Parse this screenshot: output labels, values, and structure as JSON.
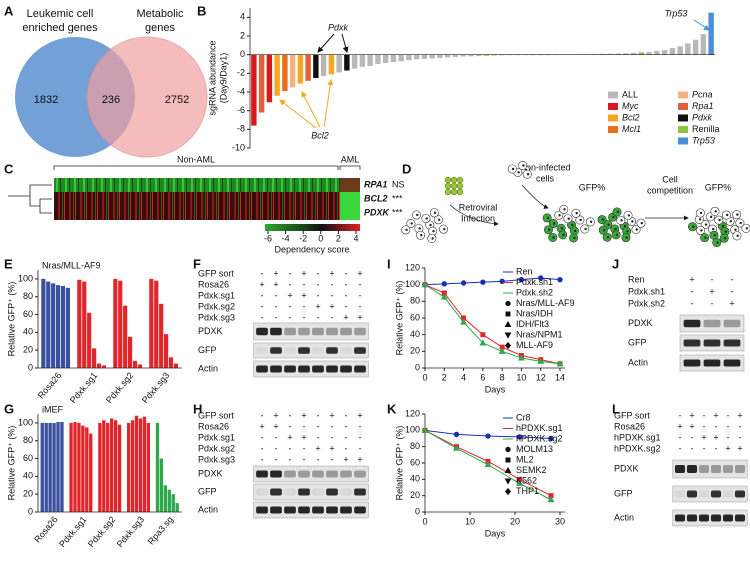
{
  "venn": {
    "label": "A",
    "left": {
      "lines": [
        "Leukemic cell",
        "enriched genes"
      ],
      "count": 1832
    },
    "overlap": 236,
    "right": {
      "lines": [
        "Metabolic",
        "genes"
      ],
      "count": 2752
    }
  },
  "heatmap": {
    "label": "C",
    "groups": [
      "Non-AML",
      "AML"
    ],
    "rows": [
      {
        "gene": "RPA1",
        "sig": "NS"
      },
      {
        "gene": "BCL2",
        "sig": "***"
      },
      {
        "gene": "PDXK",
        "sig": "***"
      }
    ],
    "colorbar_ticks": [
      -6,
      -4,
      -2,
      0,
      2,
      4
    ],
    "colorbar_label": "Dependency score"
  },
  "schematic": {
    "label": "D",
    "non_infected": [
      "Non-infected",
      "cells"
    ],
    "infection": [
      "Retroviral",
      "Infection"
    ],
    "gfp_before": "GFP%",
    "competition": [
      "Cell",
      "competition"
    ],
    "gfp_after": "GFP%"
  },
  "blots": [
    {
      "label": "F",
      "rows": [
        {
          "name": "GFP sort",
          "signs": [
            "-",
            "+",
            "-",
            "+",
            "-",
            "+",
            "-",
            "+"
          ]
        },
        {
          "name": "Rosa26",
          "signs": [
            "+",
            "+",
            "-",
            "-",
            "-",
            "-",
            "-",
            "-"
          ]
        },
        {
          "name": "Pdxk.sg1",
          "signs": [
            "-",
            "-",
            "+",
            "+",
            "-",
            "-",
            "-",
            "-"
          ]
        },
        {
          "name": "Pdxk.sg2",
          "signs": [
            "-",
            "-",
            "-",
            "-",
            "+",
            "+",
            "-",
            "-"
          ]
        },
        {
          "name": "Pdxk.sg3",
          "signs": [
            "-",
            "-",
            "-",
            "-",
            "-",
            "-",
            "+",
            "+"
          ]
        }
      ],
      "bands": [
        "PDXK",
        "GFP",
        "Actin"
      ]
    },
    {
      "label": "H",
      "rows": [
        {
          "name": "GFP sort",
          "signs": [
            "-",
            "+",
            "-",
            "+",
            "-",
            "+",
            "-",
            "+"
          ]
        },
        {
          "name": "Rosa26",
          "signs": [
            "+",
            "+",
            "-",
            "-",
            "-",
            "-",
            "-",
            "-"
          ]
        },
        {
          "name": "Pdxk.sg1",
          "signs": [
            "-",
            "-",
            "+",
            "+",
            "-",
            "-",
            "-",
            "-"
          ]
        },
        {
          "name": "Pdxk.sg2",
          "signs": [
            "-",
            "-",
            "-",
            "-",
            "+",
            "+",
            "-",
            "-"
          ]
        },
        {
          "name": "Pdxk.sg3",
          "signs": [
            "-",
            "-",
            "-",
            "-",
            "-",
            "-",
            "+",
            "+"
          ]
        }
      ],
      "bands": [
        "PDXK",
        "GFP",
        "Actin"
      ]
    },
    {
      "label": "J",
      "rows": [
        {
          "name": "Ren",
          "signs": [
            "+",
            "-",
            "-"
          ]
        },
        {
          "name": "Pdxk.sh1",
          "signs": [
            "-",
            "+",
            "-"
          ]
        },
        {
          "name": "Pdxk.sh2",
          "signs": [
            "-",
            "-",
            "+"
          ]
        }
      ],
      "bands": [
        "PDXK",
        "GFP",
        "Actin"
      ]
    },
    {
      "label": "L",
      "rows": [
        {
          "name": "GFP sort",
          "signs": [
            "-",
            "+",
            "-",
            "+",
            "-",
            "+"
          ]
        },
        {
          "name": "Rosa26",
          "signs": [
            "+",
            "+",
            "-",
            "-",
            "-",
            "-"
          ]
        },
        {
          "name": "hPDXK.sg1",
          "signs": [
            "-",
            "-",
            "+",
            "+",
            "-",
            "-"
          ]
        },
        {
          "name": "hPDXK.sg2",
          "signs": [
            "-",
            "-",
            "-",
            "-",
            "+",
            "+"
          ]
        }
      ],
      "bands": [
        "PDXK",
        "GFP",
        "Actin"
      ]
    }
  ],
  "chart_data": [
    {
      "type": "bar",
      "label": "B",
      "y_label": [
        "sgRNA abundance",
        "(Day9/Day1)"
      ],
      "ylim": [
        -10,
        5
      ],
      "yticks": [
        -10,
        -8,
        -6,
        -4,
        -2,
        0,
        2,
        4
      ],
      "values": [
        -7.6,
        -6.2,
        -5.1,
        -4.4,
        -3.9,
        -3.5,
        -3.1,
        -2.8,
        -2.5,
        -2.3,
        -2.1,
        -1.9,
        -1.7,
        -1.5,
        -1.3,
        -1.2,
        -1.0,
        -0.9,
        -0.8,
        -0.7,
        -0.6,
        -0.5,
        -0.45,
        -0.4,
        -0.35,
        -0.3,
        -0.25,
        -0.2,
        -0.18,
        -0.15,
        -0.12,
        -0.1,
        -0.08,
        -0.06,
        -0.05,
        -0.04,
        -0.03,
        -0.02,
        -0.01,
        0.01,
        0.02,
        0.03,
        0.04,
        0.05,
        0.06,
        0.08,
        0.1,
        0.12,
        0.15,
        0.2,
        0.25,
        0.3,
        0.4,
        0.5,
        0.7,
        0.9,
        1.2,
        1.6,
        2.2,
        4.5
      ],
      "groups": [
        "Myc",
        "Rpa1",
        "Myc",
        "Bcl2",
        "Mcl1",
        "Pcna",
        "Bcl2",
        "Rpa1",
        "Pdxk",
        "ALL",
        "Bcl2",
        "ALL",
        "Pdxk",
        "ALL",
        "ALL",
        "ALL",
        "ALL",
        "ALL",
        "ALL",
        "ALL",
        "ALL",
        "ALL",
        "ALL",
        "ALL",
        "ALL",
        "ALL",
        "ALL",
        "ALL",
        "ALL",
        "ALL",
        "Renilla",
        "ALL",
        "ALL",
        "ALL",
        "ALL",
        "ALL",
        "ALL",
        "ALL",
        "ALL",
        "ALL",
        "ALL",
        "ALL",
        "Renilla",
        "ALL",
        "ALL",
        "ALL",
        "ALL",
        "ALL",
        "ALL",
        "ALL",
        "Renilla",
        "ALL",
        "ALL",
        "ALL",
        "ALL",
        "ALL",
        "ALL",
        "ALL",
        "ALL",
        "Trp53"
      ],
      "legend": [
        {
          "name": "ALL",
          "color": "#b8b8b8",
          "italic": false
        },
        {
          "name": "Myc",
          "color": "#d7191c",
          "italic": true
        },
        {
          "name": "Bcl2",
          "color": "#f5a623",
          "italic": true
        },
        {
          "name": "Mcl1",
          "color": "#e8701c",
          "italic": true
        },
        {
          "name": "Pcna",
          "color": "#f4b183",
          "italic": true
        },
        {
          "name": "Rpa1",
          "color": "#e0603a",
          "italic": true
        },
        {
          "name": "Pdxk",
          "color": "#111111",
          "italic": true
        },
        {
          "name": "Renilla",
          "color": "#8cc63f",
          "italic": false
        },
        {
          "name": "Trp53",
          "color": "#4a8fd9",
          "italic": true
        }
      ],
      "annotations": [
        "Pdxk",
        "Bcl2",
        "Trp53"
      ]
    },
    {
      "type": "bar",
      "label": "E",
      "subtitle": "Nras/MLL-AF9",
      "y_label": [
        "Relative GFP⁺ (%)"
      ],
      "ylim": [
        0,
        110
      ],
      "yticks": [
        0,
        20,
        40,
        60,
        80,
        100
      ],
      "groups": [
        {
          "name": "Rosa26",
          "color": "#3a4fa0",
          "values": [
            100,
            97,
            95,
            93,
            92,
            90
          ]
        },
        {
          "name": "Pdxk.sg1",
          "color": "#e0262b",
          "values": [
            99,
            97,
            62,
            22,
            5,
            3
          ]
        },
        {
          "name": "Pdxk.sg2",
          "color": "#e0262b",
          "values": [
            100,
            98,
            70,
            35,
            8,
            4
          ]
        },
        {
          "name": "Pdxk.sg3",
          "color": "#e0262b",
          "values": [
            100,
            98,
            72,
            38,
            12,
            5
          ]
        }
      ]
    },
    {
      "type": "bar",
      "label": "G",
      "subtitle": "iMEF",
      "y_label": [
        "Relative GFP⁺ (%)"
      ],
      "ylim": [
        0,
        110
      ],
      "yticks": [
        0,
        20,
        40,
        60,
        80,
        100
      ],
      "groups": [
        {
          "name": "Rosa26",
          "color": "#3a4fa0",
          "values": [
            100,
            100,
            100,
            100,
            101,
            101
          ]
        },
        {
          "name": "Pdxk.sg1",
          "color": "#e0262b",
          "values": [
            100,
            101,
            100,
            97,
            95,
            88
          ]
        },
        {
          "name": "Pdxk.sg2",
          "color": "#e0262b",
          "values": [
            100,
            103,
            100,
            105,
            103,
            98
          ]
        },
        {
          "name": "Pdxk.sg3",
          "color": "#e0262b",
          "values": [
            100,
            103,
            108,
            105,
            107,
            100
          ]
        },
        {
          "name": "Rpa3.sg",
          "color": "#2ea84a",
          "values": [
            100,
            60,
            30,
            25,
            20,
            10
          ]
        }
      ]
    },
    {
      "type": "line",
      "label": "I",
      "y_label": [
        "Relative GFP⁺ (%)"
      ],
      "x_label": "Days",
      "x": [
        0,
        2,
        4,
        6,
        8,
        10,
        12,
        14
      ],
      "xlim": [
        0,
        14
      ],
      "xticks": [
        0,
        2,
        4,
        6,
        8,
        10,
        12,
        14
      ],
      "ylim": [
        0,
        120
      ],
      "yticks": [
        0,
        20,
        40,
        60,
        80,
        100,
        120
      ],
      "series": [
        {
          "name": "Ren",
          "color": "#1a2fb0",
          "values": [
            100,
            101,
            102,
            103,
            104,
            106,
            108,
            106
          ]
        },
        {
          "name": "Pdxk.sh1",
          "color": "#e0262b",
          "values": [
            100,
            90,
            60,
            40,
            25,
            15,
            10,
            5
          ]
        },
        {
          "name": "Pdxk.sh2",
          "color": "#2ea84a",
          "values": [
            100,
            85,
            55,
            30,
            20,
            12,
            8,
            5
          ]
        }
      ],
      "marker_legend": [
        "Nras/MLL-AF9",
        "Nras/IDH",
        "IDH/Flt3",
        "Nras/NPM1",
        "MLL-AF9"
      ]
    },
    {
      "type": "line",
      "label": "K",
      "y_label": [
        "Relative GFP⁺ (%)"
      ],
      "x_label": "Days",
      "x": [
        0,
        7,
        14,
        21,
        28
      ],
      "xlim": [
        0,
        30
      ],
      "xticks": [
        0,
        10,
        20,
        30
      ],
      "ylim": [
        0,
        120
      ],
      "yticks": [
        0,
        20,
        40,
        60,
        80,
        100,
        120
      ],
      "series": [
        {
          "name": "Cr8",
          "color": "#1a2fb0",
          "values": [
            100,
            95,
            93,
            92,
            90
          ]
        },
        {
          "name": "hPDXK.sg1",
          "color": "#e0262b",
          "values": [
            100,
            80,
            62,
            40,
            20
          ]
        },
        {
          "name": "hPDXK.sg2",
          "color": "#2ea84a",
          "values": [
            100,
            78,
            58,
            35,
            15
          ]
        }
      ],
      "marker_legend": [
        "MOLM13",
        "ML2",
        "SEMK2",
        "K562",
        "THP1"
      ]
    }
  ]
}
